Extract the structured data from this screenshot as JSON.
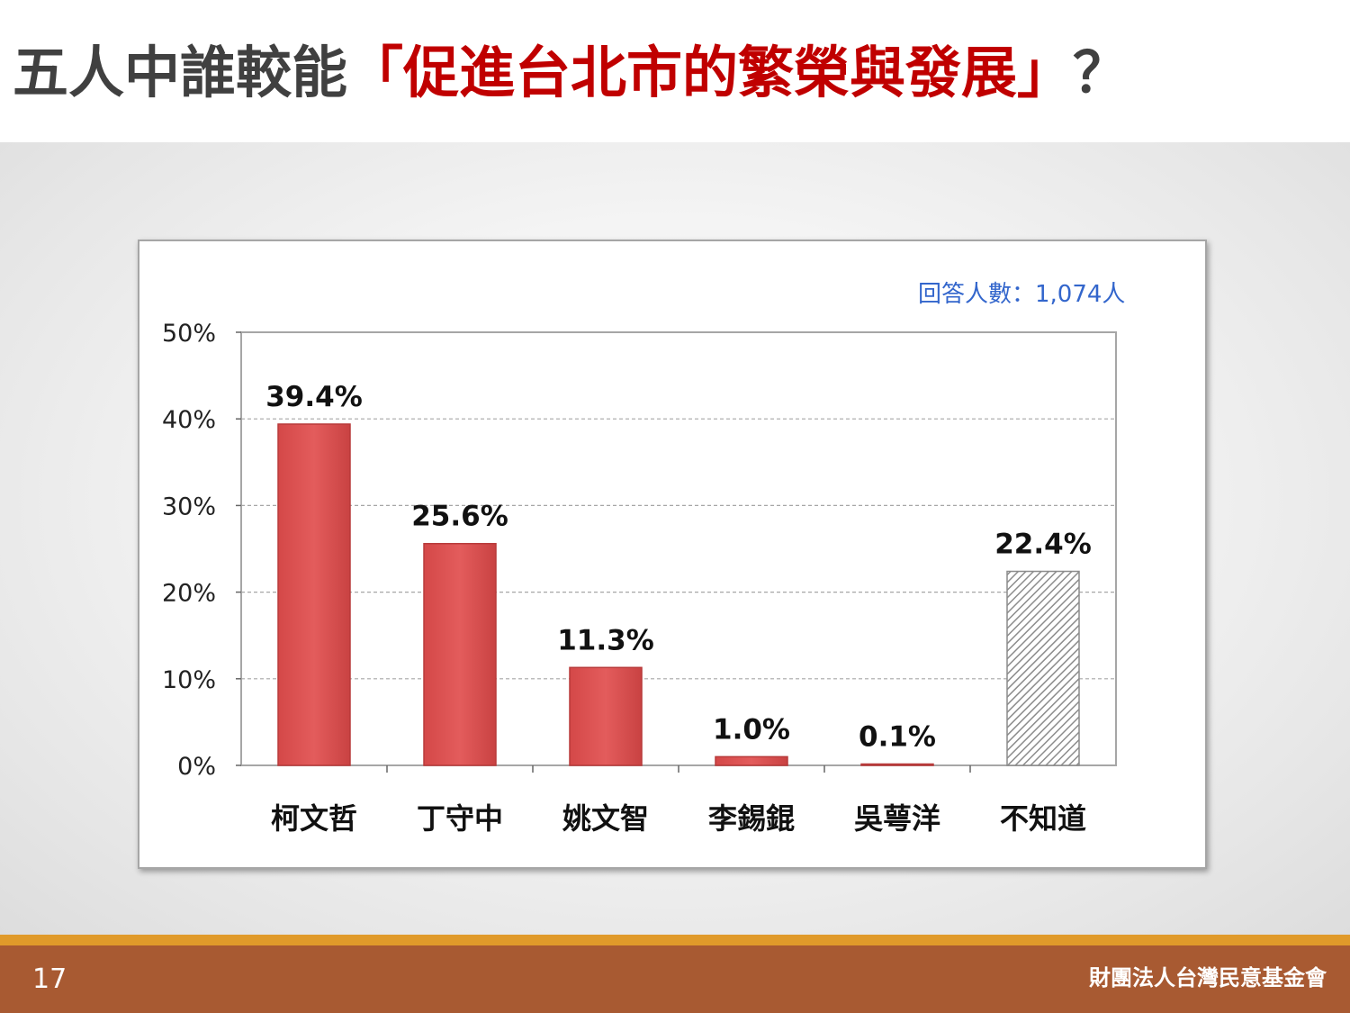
{
  "slide": {
    "title_prefix": "五人中誰較能",
    "title_highlight": "「促進台北市的繁榮與發展」",
    "title_suffix": "？",
    "respondents": "回答人數：1,074人",
    "page_number": "17",
    "organization": "財團法人台灣民意基金會"
  },
  "colors": {
    "bar": "#e05656",
    "bar_stroke": "#b83a3a",
    "hatch": "#8c8c8c",
    "grid": "#a6a6a6",
    "title_highlight": "#c00000",
    "respondents": "#3366cc",
    "footer": "#a85a32",
    "footer_accent": "#e09a2a"
  },
  "chart_data": {
    "type": "bar",
    "categories": [
      "柯文哲",
      "丁守中",
      "姚文智",
      "李錫錕",
      "吳萼洋",
      "不知道"
    ],
    "values": [
      39.4,
      25.6,
      11.3,
      1.0,
      0.1,
      22.4
    ],
    "value_labels": [
      "39.4%",
      "25.6%",
      "11.3%",
      "1.0%",
      "0.1%",
      "22.4%"
    ],
    "patterned": [
      false,
      false,
      false,
      false,
      false,
      true
    ],
    "yticks": [
      "0%",
      "10%",
      "20%",
      "30%",
      "40%",
      "50%"
    ],
    "ylim": [
      0,
      50
    ],
    "grid": true
  }
}
